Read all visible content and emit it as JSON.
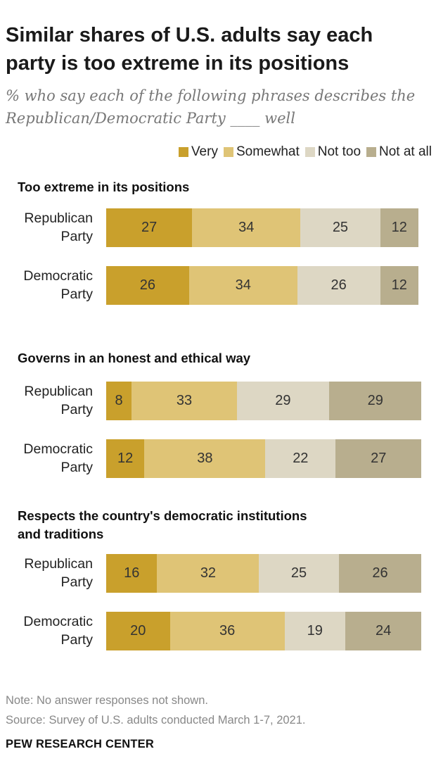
{
  "title": "Similar shares of U.S. adults say each party is too extreme in its positions",
  "subtitle": "% who say each of the following phrases describes the Republican/Democratic Party ____ well",
  "legend": [
    {
      "label": "Very",
      "color": "#c9a02c"
    },
    {
      "label": "Somewhat",
      "color": "#dfc476"
    },
    {
      "label": "Not too",
      "color": "#ddd7c4"
    },
    {
      "label": "Not at all",
      "color": "#b8ae8e"
    }
  ],
  "chart_data": {
    "type": "bar",
    "orientation": "horizontal",
    "stacked": true,
    "series_names": [
      "Very",
      "Somewhat",
      "Not too",
      "Not at all"
    ],
    "groups": [
      {
        "label": "Too extreme in its positions",
        "rows": [
          {
            "label": "Republican Party",
            "values": [
              27,
              34,
              25,
              12
            ]
          },
          {
            "label": "Democratic Party",
            "values": [
              26,
              34,
              26,
              12
            ]
          }
        ]
      },
      {
        "label": "Governs in an honest and ethical way",
        "rows": [
          {
            "label": "Republican Party",
            "values": [
              8,
              33,
              29,
              29
            ]
          },
          {
            "label": "Democratic Party",
            "values": [
              12,
              38,
              22,
              27
            ]
          }
        ]
      },
      {
        "label": "Respects the country's democratic institutions and traditions",
        "rows": [
          {
            "label": "Republican Party",
            "values": [
              16,
              32,
              25,
              26
            ]
          },
          {
            "label": "Democratic Party",
            "values": [
              20,
              36,
              19,
              24
            ]
          }
        ]
      }
    ]
  },
  "footer": {
    "note": "Note: No answer responses not shown.",
    "source": "Source: Survey of U.S. adults conducted March 1-7, 2021.",
    "org": "PEW RESEARCH CENTER"
  }
}
